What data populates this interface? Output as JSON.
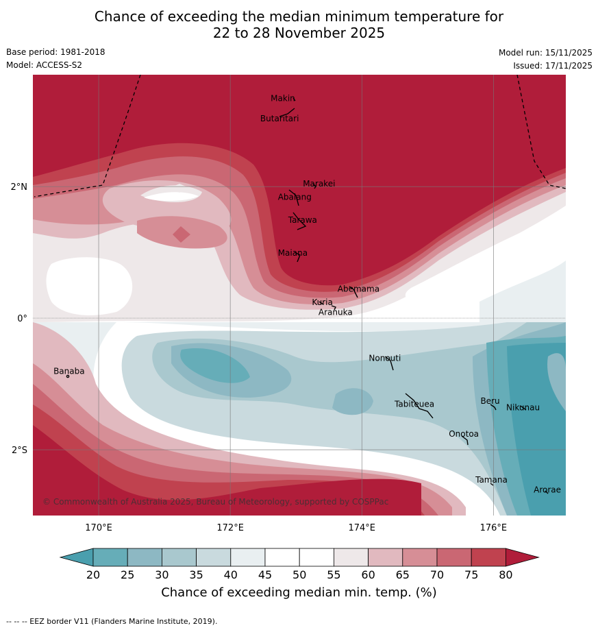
{
  "title": {
    "line1": "Chance of exceeding the median minimum temperature for",
    "line2": "22 to 28 November 2025"
  },
  "meta": {
    "base_period": "Base period: 1981-2018",
    "model": "Model: ACCESS-S2",
    "model_run": "Model run: 15/11/2025",
    "issued": "Issued: 17/11/2025"
  },
  "map": {
    "lon_range": [
      169,
      177.1
    ],
    "lat_range": [
      -3,
      3.7
    ],
    "lon_ticks": [
      {
        "v": 170,
        "label": "170°E"
      },
      {
        "v": 172,
        "label": "172°E"
      },
      {
        "v": 174,
        "label": "174°E"
      },
      {
        "v": 176,
        "label": "176°E"
      }
    ],
    "lat_ticks": [
      {
        "v": 2,
        "label": "2°N"
      },
      {
        "v": 0,
        "label": "0°"
      },
      {
        "v": -2,
        "label": "2°S"
      }
    ],
    "copyright": "© Commonwealth of Australia 2025, Bureau of Meteorology, supported by COSPPac",
    "places": [
      {
        "name": "Makin",
        "lon": 172.8,
        "lat": 3.3
      },
      {
        "name": "Butaritari",
        "lon": 172.75,
        "lat": 2.99
      },
      {
        "name": "Marakei",
        "lon": 173.35,
        "lat": 2.0
      },
      {
        "name": "Abaiang",
        "lon": 172.98,
        "lat": 1.8
      },
      {
        "name": "Tarawa",
        "lon": 173.1,
        "lat": 1.45
      },
      {
        "name": "Maiana",
        "lon": 172.95,
        "lat": 0.95
      },
      {
        "name": "Abemama",
        "lon": 173.95,
        "lat": 0.4
      },
      {
        "name": "Kuria",
        "lon": 173.4,
        "lat": 0.2
      },
      {
        "name": "Aranuka",
        "lon": 173.6,
        "lat": 0.05
      },
      {
        "name": "Nonouti",
        "lon": 174.35,
        "lat": -0.65
      },
      {
        "name": "Banaba",
        "lon": 169.55,
        "lat": -0.85
      },
      {
        "name": "Beru",
        "lon": 175.95,
        "lat": -1.3
      },
      {
        "name": "Nikunau",
        "lon": 176.45,
        "lat": -1.4
      },
      {
        "name": "Tabiteuea",
        "lon": 174.8,
        "lat": -1.35
      },
      {
        "name": "Onotoa",
        "lon": 175.55,
        "lat": -1.8
      },
      {
        "name": "Tamana",
        "lon": 175.97,
        "lat": -2.5
      },
      {
        "name": "Arorae",
        "lon": 176.82,
        "lat": -2.65
      }
    ]
  },
  "colorbar": {
    "labels": [
      "20",
      "25",
      "30",
      "35",
      "40",
      "45",
      "50",
      "55",
      "60",
      "65",
      "70",
      "75",
      "80"
    ],
    "colors": [
      "#66adb8",
      "#8db8c3",
      "#a9c8ce",
      "#c9dade",
      "#e9eff1",
      "#ffffff",
      "#ffffff",
      "#eee8e9",
      "#e1b9bf",
      "#d68e96",
      "#ca6773",
      "#c0424f"
    ],
    "under_color": "#4a9fae",
    "over_color": "#b01d3a",
    "label": "Chance of exceeding median min. temp. (%)"
  },
  "footer": "--  --  -- EEZ border V11 (Flanders Marine Institute, 2019)."
}
